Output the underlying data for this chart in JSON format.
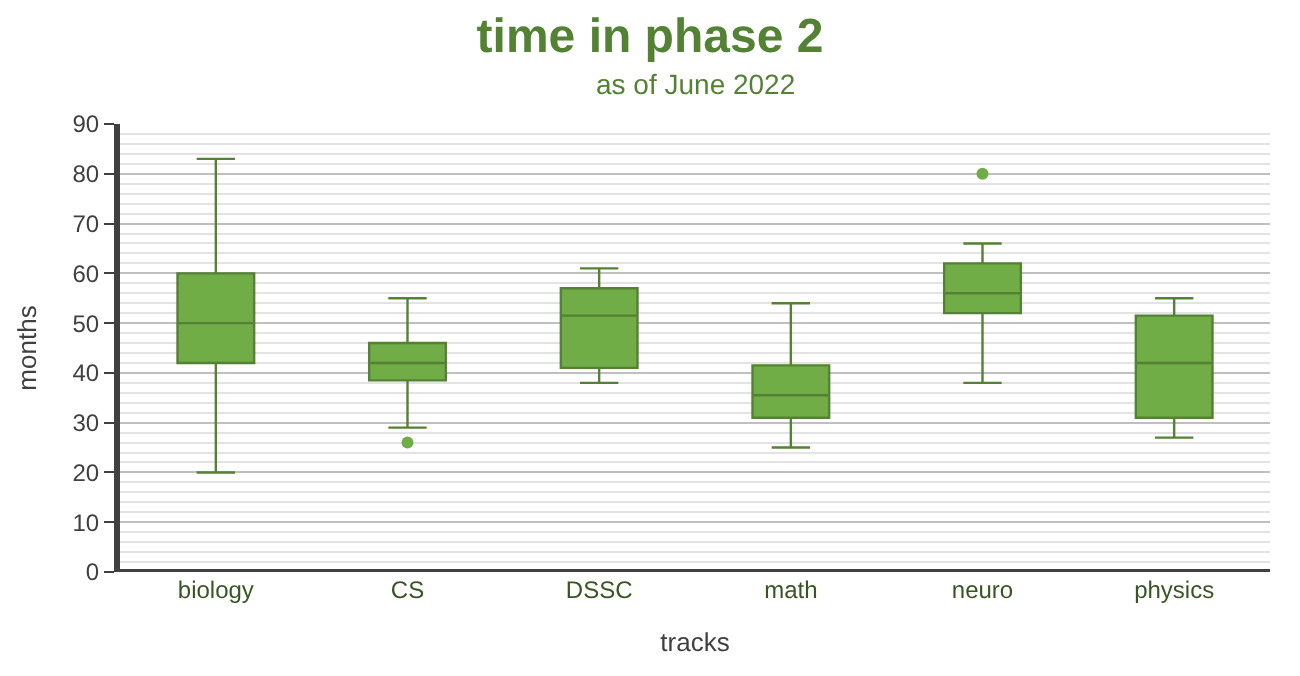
{
  "chart_data": {
    "type": "box",
    "title": "time in phase 2",
    "subtitle": "as of June 2022",
    "xlabel": "tracks",
    "ylabel": "months",
    "categories": [
      "biology",
      "CS",
      "DSSC",
      "math",
      "neuro",
      "physics"
    ],
    "series": [
      {
        "color": "#70ad47",
        "boxes": [
          {
            "low": 20,
            "q1": 42,
            "median": 50,
            "q3": 60,
            "high": 83
          },
          {
            "low": 29,
            "q1": 38.5,
            "median": 42,
            "q3": 46,
            "high": 55,
            "outliers": [
              26
            ]
          },
          {
            "low": 38,
            "q1": 41,
            "median": 51.5,
            "q3": 57,
            "high": 61
          },
          {
            "low": 25,
            "q1": 31,
            "median": 35.5,
            "q3": 41.5,
            "high": 54
          },
          {
            "low": 38,
            "q1": 52,
            "median": 56,
            "q3": 62,
            "high": 66,
            "outliers": [
              80
            ]
          },
          {
            "low": 27,
            "q1": 31,
            "median": 42,
            "q3": 51.5,
            "high": 55
          }
        ]
      }
    ],
    "ylim": [
      0,
      90
    ],
    "yticks": [
      0,
      10,
      20,
      30,
      40,
      50,
      60,
      70,
      80,
      90
    ],
    "grid": "y"
  }
}
